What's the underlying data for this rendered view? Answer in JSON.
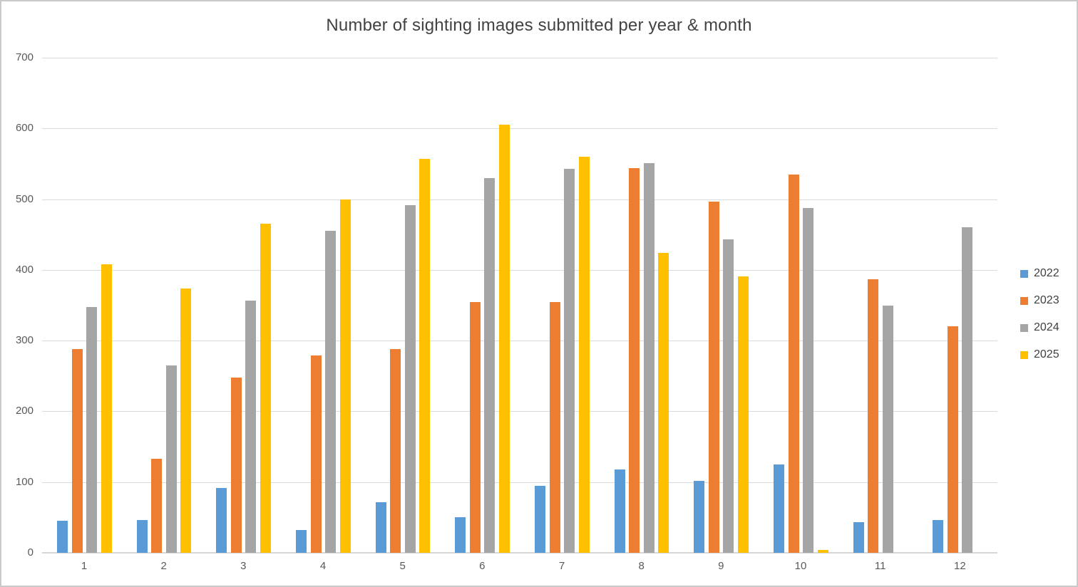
{
  "chart_data": {
    "type": "bar",
    "title": "Number of sighting images submitted per year & month",
    "categories": [
      "1",
      "2",
      "3",
      "4",
      "5",
      "6",
      "7",
      "8",
      "9",
      "10",
      "11",
      "12"
    ],
    "xlabel": "",
    "ylabel": "",
    "ylim": [
      0,
      700
    ],
    "yticks": [
      0,
      100,
      200,
      300,
      400,
      500,
      600,
      700
    ],
    "grid": true,
    "legend_position": "right",
    "series": [
      {
        "name": "2022",
        "color": "#5B9BD5",
        "values": [
          45,
          46,
          92,
          32,
          72,
          50,
          95,
          118,
          102,
          125,
          43,
          46
        ]
      },
      {
        "name": "2023",
        "color": "#ED7D31",
        "values": [
          288,
          133,
          248,
          279,
          288,
          355,
          355,
          544,
          497,
          535,
          387,
          320
        ]
      },
      {
        "name": "2024",
        "color": "#A5A5A5",
        "values": [
          347,
          265,
          357,
          455,
          492,
          530,
          543,
          551,
          443,
          487,
          350,
          460
        ]
      },
      {
        "name": "2025",
        "color": "#FFC000",
        "values": [
          408,
          374,
          465,
          500,
          557,
          605,
          560,
          424,
          391,
          4,
          null,
          null
        ]
      }
    ]
  }
}
